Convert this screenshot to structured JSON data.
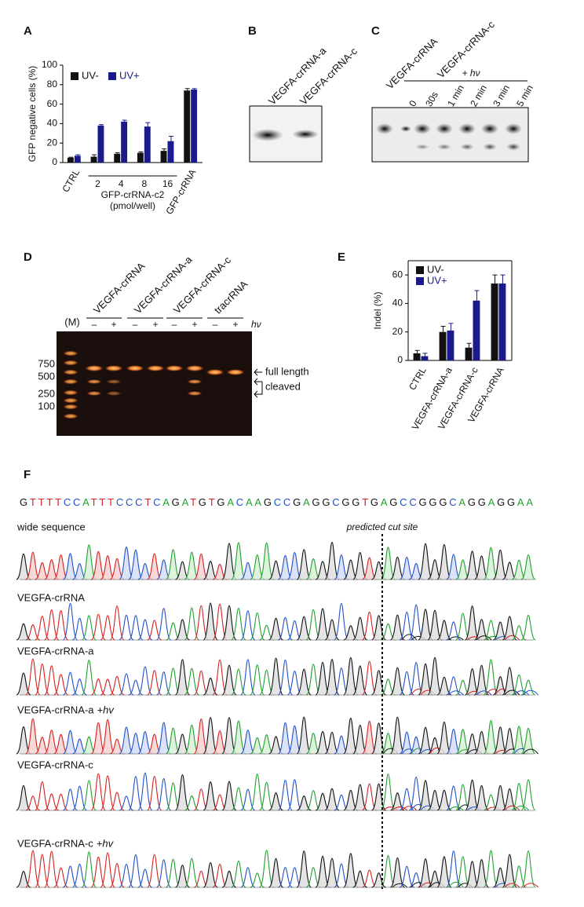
{
  "panel_labels": [
    "A",
    "B",
    "C",
    "D",
    "E",
    "F"
  ],
  "chart_data": [
    {
      "type": "bar",
      "ylabel": "GFP negative cells (%)",
      "categories": [
        "CTRL",
        "2",
        "4",
        "8",
        "16",
        "GFP-crRNA"
      ],
      "xlabel": "GFP-crRNA-c2",
      "xlabel_unit": "(pmol/well)",
      "series": [
        {
          "name": "UV-",
          "color": "#111111",
          "values": [
            5,
            6,
            9,
            10,
            12,
            74
          ],
          "errors": [
            0.5,
            2,
            1,
            1,
            2,
            2
          ]
        },
        {
          "name": "UV+",
          "color": "#1a1a8c",
          "values": [
            7,
            38,
            42,
            37,
            22,
            75
          ],
          "errors": [
            1,
            1,
            1.5,
            4,
            5,
            1
          ]
        }
      ],
      "ylim": [
        0,
        100
      ],
      "yticks": [
        0,
        20,
        40,
        60,
        80,
        100
      ],
      "legend": "upper left"
    },
    {
      "type": "bar",
      "ylabel": "Indel (%)",
      "categories": [
        "CTRL",
        "VEGFA-crRNA-a",
        "VEGFA-crRNA-c",
        "VEGFA-crRNA"
      ],
      "series": [
        {
          "name": "UV-",
          "color": "#111111",
          "values": [
            5,
            20,
            9,
            54
          ],
          "errors": [
            2,
            4,
            3,
            6
          ]
        },
        {
          "name": "UV+",
          "color": "#1a1a8c",
          "values": [
            3,
            21,
            42,
            54
          ],
          "errors": [
            2,
            5,
            7,
            6
          ]
        }
      ],
      "ylim": [
        0,
        70
      ],
      "yticks": [
        0,
        20,
        40,
        60
      ],
      "legend": "upper left"
    }
  ],
  "gel_b": {
    "lanes": [
      "VEGFA-crRNA-a",
      "VEGFA-crRNA-c"
    ]
  },
  "gel_c": {
    "control": "VEGFA-crRNA",
    "group": "VEGFA-crRNA-c",
    "treatment": "+ hν",
    "lanes": [
      "0",
      "30s",
      "1 min",
      "2 min",
      "3 min",
      "5 min"
    ]
  },
  "gel_d": {
    "marker": "(M)",
    "groups": [
      "VEGFA-crRNA",
      "VEGFA-crRNA-a",
      "VEGFA-crRNA-c",
      "tracrRNA"
    ],
    "signs": [
      "–",
      "+"
    ],
    "treatment": "hν",
    "ladder": [
      "750",
      "500",
      "250",
      "100"
    ],
    "full_length": "full length",
    "cleaved": "cleaved"
  },
  "sequencing": {
    "sequence": "GTTTTCCATTTCCCTCAGATGTGACAAGCCGAGGCGGTGAGCCGGGCAGGAGGAA",
    "cut_site": "predicted cut site",
    "traces": [
      {
        "name": "wide sequence"
      },
      {
        "name": "VEGFA-crRNA"
      },
      {
        "name": "VEGFA-crRNA-a"
      },
      {
        "name": "VEGFA-crRNA-a",
        "suffix": "+hv"
      },
      {
        "name": "VEGFA-crRNA-c"
      },
      {
        "name": "VEGFA-crRNA-c",
        "suffix": "+hv"
      }
    ]
  }
}
